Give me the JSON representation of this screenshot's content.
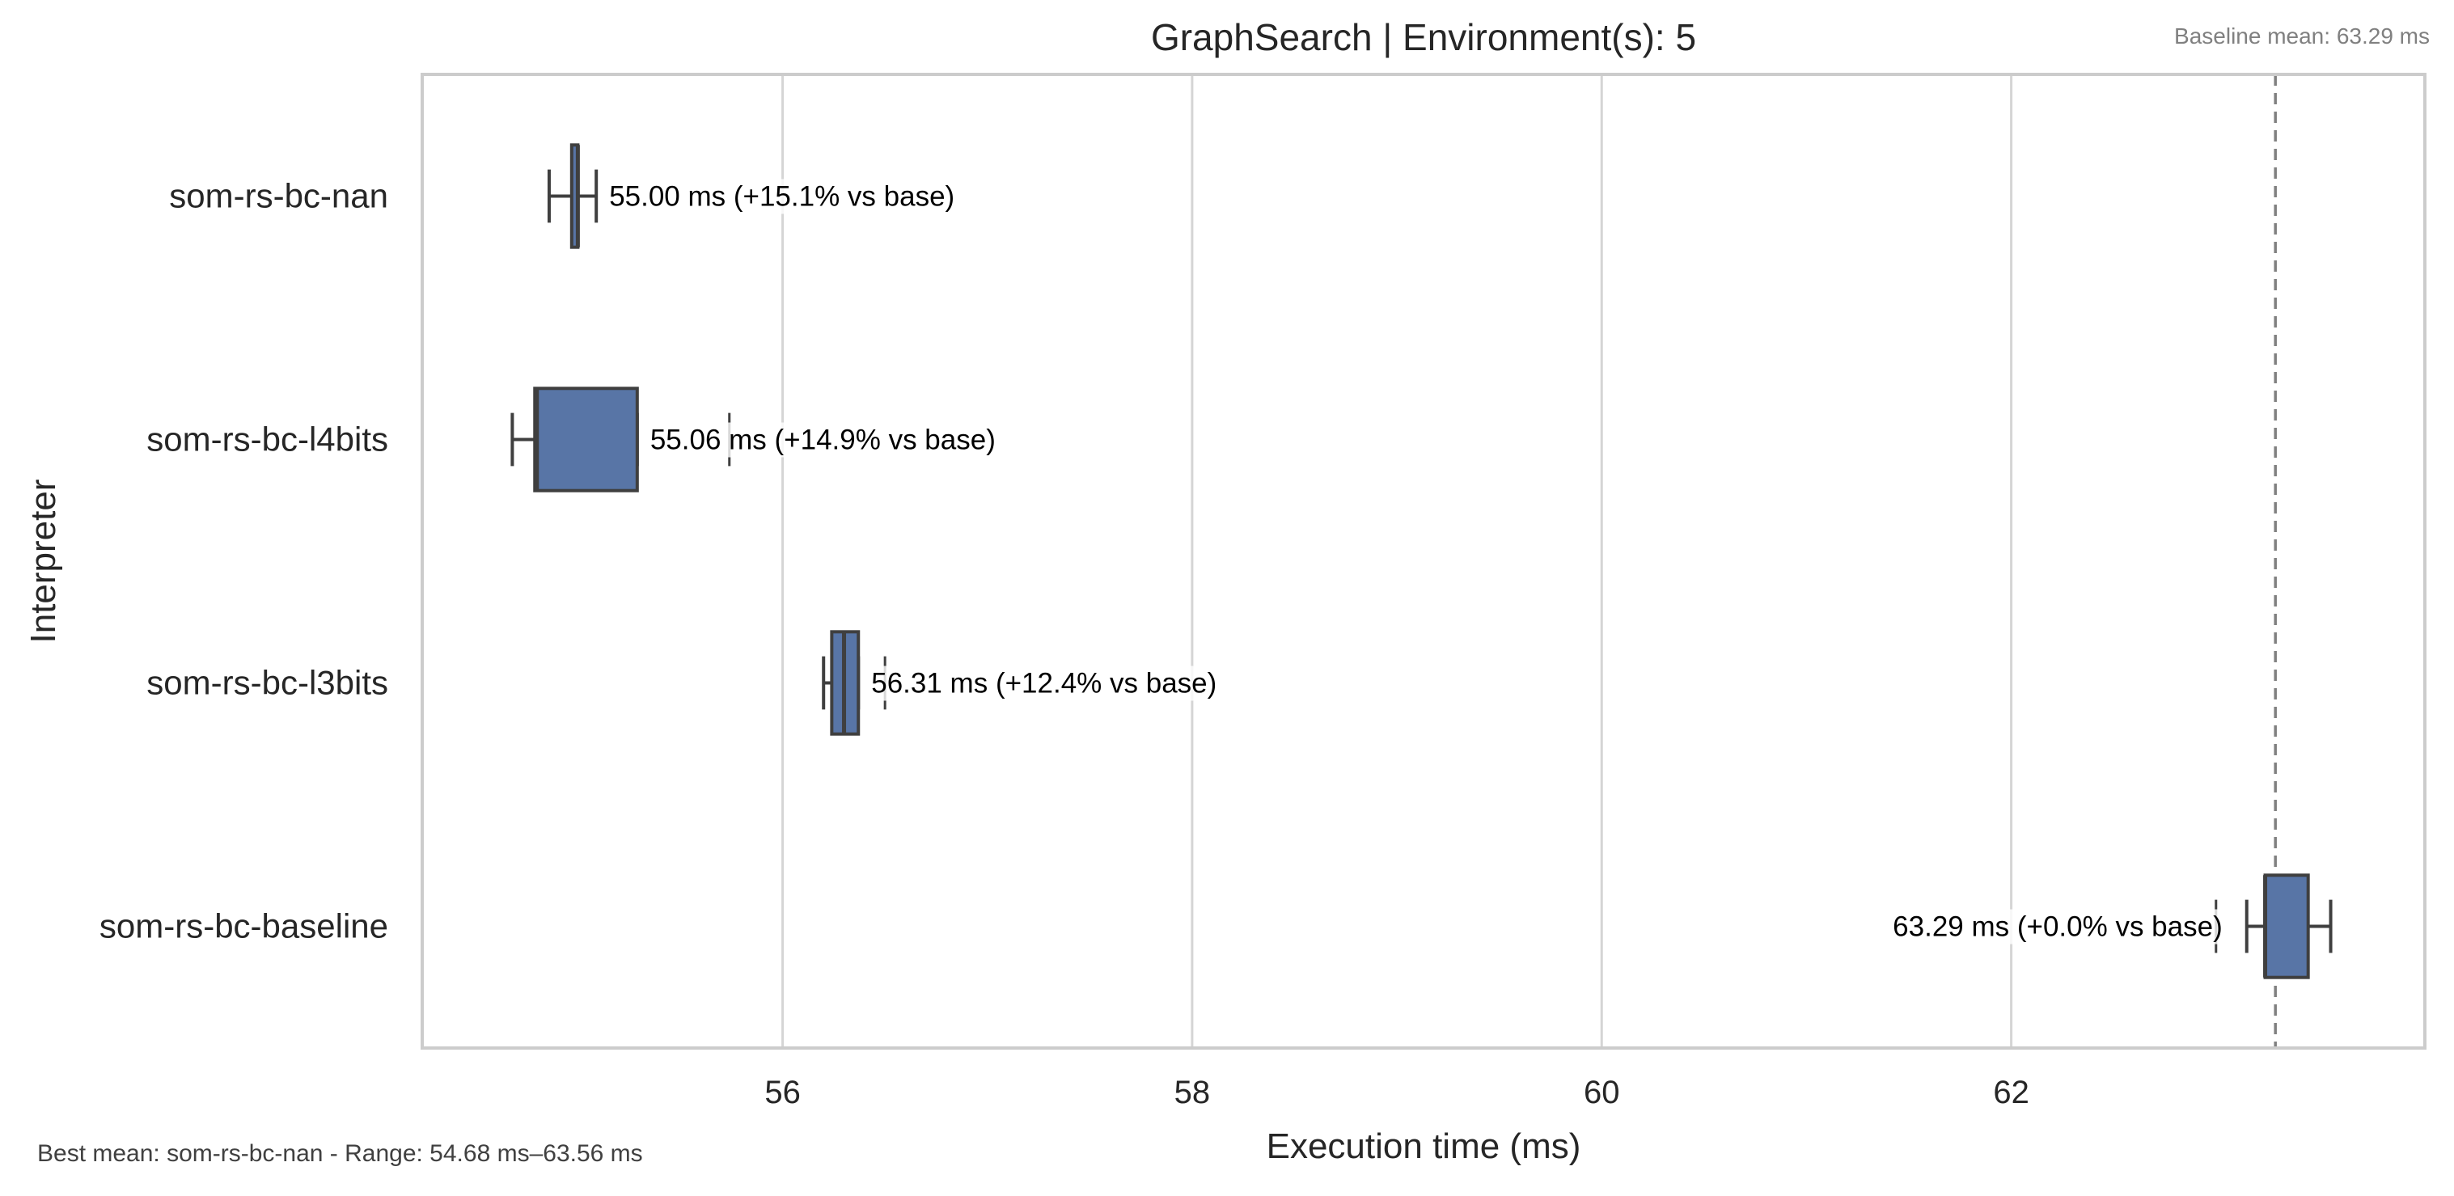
{
  "chart_data": {
    "type": "box",
    "orientation": "horizontal",
    "title": "GraphSearch | Environment(s): 5",
    "xlabel": "Execution time (ms)",
    "ylabel": "Interpreter",
    "xlim": [
      54.24,
      64.02
    ],
    "x_ticks": [
      56,
      58,
      60,
      62
    ],
    "grid": "vertical",
    "baseline": {
      "value": 63.29,
      "label": "Baseline mean: 63.29 ms"
    },
    "footer_note": "Best mean: som-rs-bc-nan - Range: 54.68 ms–63.56 ms",
    "categories": [
      "som-rs-bc-nan",
      "som-rs-bc-l4bits",
      "som-rs-bc-l3bits",
      "som-rs-bc-baseline"
    ],
    "series": [
      {
        "category": "som-rs-bc-nan",
        "whisker_low": 54.86,
        "q1": 54.97,
        "median": 55.0,
        "q3": 55.0,
        "whisker_high": 55.09,
        "outliers": [],
        "mean": 55.0,
        "annotation": "55.00 ms  (+15.1% vs base)"
      },
      {
        "category": "som-rs-bc-l4bits",
        "whisker_low": 54.68,
        "q1": 54.79,
        "median": 54.8,
        "q3": 55.29,
        "whisker_high": 55.29,
        "outliers": [
          55.74
        ],
        "mean": 55.06,
        "annotation": "55.06 ms  (+14.9% vs base)"
      },
      {
        "category": "som-rs-bc-l3bits",
        "whisker_low": 56.2,
        "q1": 56.24,
        "median": 56.3,
        "q3": 56.37,
        "whisker_high": 56.37,
        "outliers": [
          56.5
        ],
        "mean": 56.31,
        "annotation": "56.31 ms  (+12.4% vs base)"
      },
      {
        "category": "som-rs-bc-baseline",
        "whisker_low": 63.15,
        "q1": 63.24,
        "median": 63.24,
        "q3": 63.45,
        "whisker_high": 63.56,
        "outliers": [
          63.0
        ],
        "mean": 63.29,
        "annotation": "63.29 ms  (+0.0% vs base)"
      }
    ],
    "colors": {
      "box_fill": "#5875a6",
      "box_edge": "#3f3f3f",
      "grid": "#d5d5d5",
      "frame": "#cccccc",
      "baseline_line": "#808080",
      "baseline_text": "#808080",
      "title_text": "#262626",
      "label_text": "#262626",
      "annotation_text": "#000000",
      "footer_text": "#404040"
    }
  }
}
